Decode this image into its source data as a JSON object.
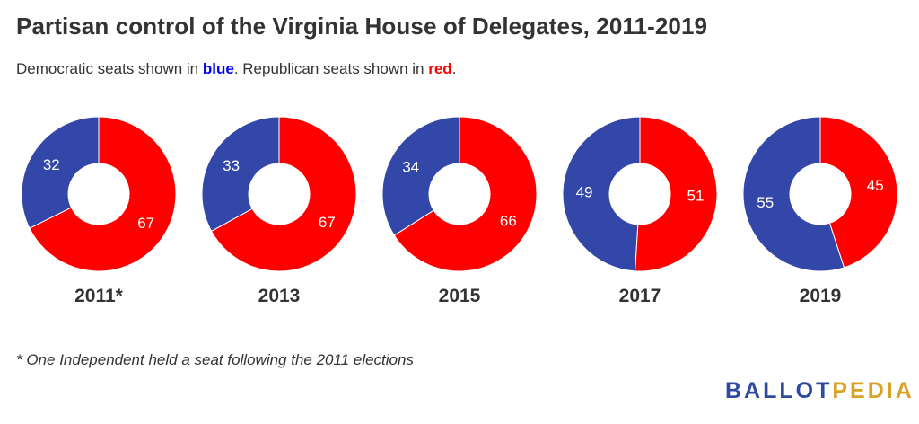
{
  "title": "Partisan control of the Virginia House of Delegates, 2011-2019",
  "subtitle": {
    "prefix": "Democratic seats shown in ",
    "blue_word": "blue",
    "middle": ". Republican seats shown in ",
    "red_word": "red",
    "suffix": "."
  },
  "colors": {
    "democratic": "#3347a8",
    "republican": "#ff0000"
  },
  "chart_data": {
    "type": "pie",
    "variant": "donut",
    "charts": [
      {
        "label": "2011*",
        "values": [
          32,
          67
        ]
      },
      {
        "label": "2013",
        "values": [
          33,
          67
        ]
      },
      {
        "label": "2015",
        "values": [
          34,
          66
        ]
      },
      {
        "label": "2017",
        "values": [
          49,
          51
        ]
      },
      {
        "label": "2019",
        "values": [
          55,
          45
        ]
      }
    ]
  },
  "footnote": "* One Independent held a seat following the 2011 elections",
  "logo": {
    "part1": "BALLOT",
    "part2": "PEDIA"
  }
}
